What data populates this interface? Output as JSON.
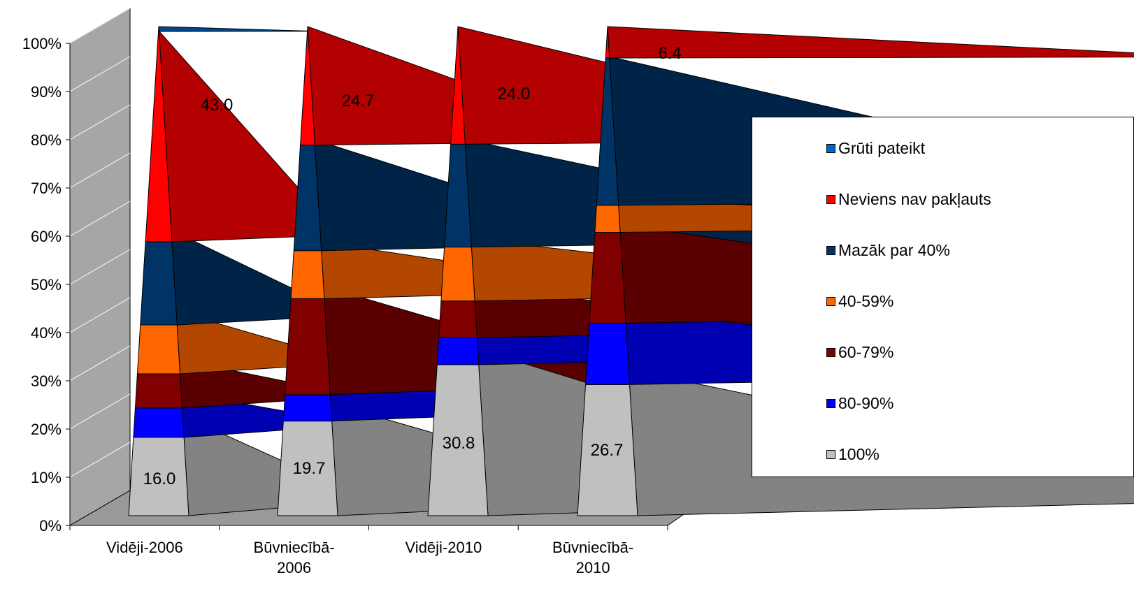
{
  "chart_data": {
    "type": "bar",
    "subtype": "stacked-100-percent-3d-pyramid",
    "title": "",
    "xlabel": "",
    "ylabel": "",
    "ylim": [
      0,
      100
    ],
    "y_ticks": [
      "0%",
      "10%",
      "20%",
      "30%",
      "40%",
      "50%",
      "60%",
      "70%",
      "80%",
      "90%",
      "100%"
    ],
    "categories": [
      {
        "line1": "Vidēji-2006",
        "line2": ""
      },
      {
        "line1": "Būvniecībā-",
        "line2": "2006"
      },
      {
        "line1": "Vidēji-2010",
        "line2": ""
      },
      {
        "line1": "Būvniecībā-",
        "line2": "2010"
      }
    ],
    "series": [
      {
        "name": "100%",
        "color": "#c0c0c0",
        "values": [
          16.0,
          19.7,
          30.8,
          26.7
        ]
      },
      {
        "name": "80-90%",
        "color": "#0000ff",
        "values": [
          6.0,
          5.5,
          5.5,
          12.5
        ]
      },
      {
        "name": "60-79%",
        "color": "#800000",
        "values": [
          7.0,
          20.0,
          7.5,
          18.5
        ]
      },
      {
        "name": "40-59%",
        "color": "#ff6600",
        "values": [
          10.0,
          10.0,
          11.0,
          5.5
        ]
      },
      {
        "name": "Mazāk par 40%",
        "color": "#003366",
        "values": [
          17.0,
          22.0,
          21.0,
          30.0
        ]
      },
      {
        "name": "Neviens nav pakļauts",
        "color": "#ff0000",
        "values": [
          43.0,
          24.7,
          24.0,
          6.4
        ]
      },
      {
        "name": "Grūti pateikt",
        "color": "#0066cc",
        "values": [
          1.0,
          0.0,
          0.0,
          0.0
        ]
      }
    ],
    "data_labels": [
      {
        "category": 0,
        "series": "100%",
        "text": "16.0"
      },
      {
        "category": 1,
        "series": "100%",
        "text": "19.7"
      },
      {
        "category": 2,
        "series": "100%",
        "text": "30.8"
      },
      {
        "category": 3,
        "series": "100%",
        "text": "26.7"
      },
      {
        "category": 0,
        "series": "Neviens nav pakļauts",
        "text": "43.0"
      },
      {
        "category": 1,
        "series": "Neviens nav pakļauts",
        "text": "24.7"
      },
      {
        "category": 2,
        "series": "Neviens nav pakļauts",
        "text": "24.0"
      },
      {
        "category": 3,
        "series": "Neviens nav pakļauts",
        "text": "6.4"
      }
    ],
    "legend": {
      "placement": "right",
      "order": [
        "Grūti pateikt",
        "Neviens nav pakļauts",
        "Mazāk par 40%",
        "40-59%",
        "60-79%",
        "80-90%",
        "100%"
      ]
    },
    "colors": {
      "wall": "#a6a6a6",
      "floor": "#999999",
      "floor_edge": "#808080"
    }
  }
}
